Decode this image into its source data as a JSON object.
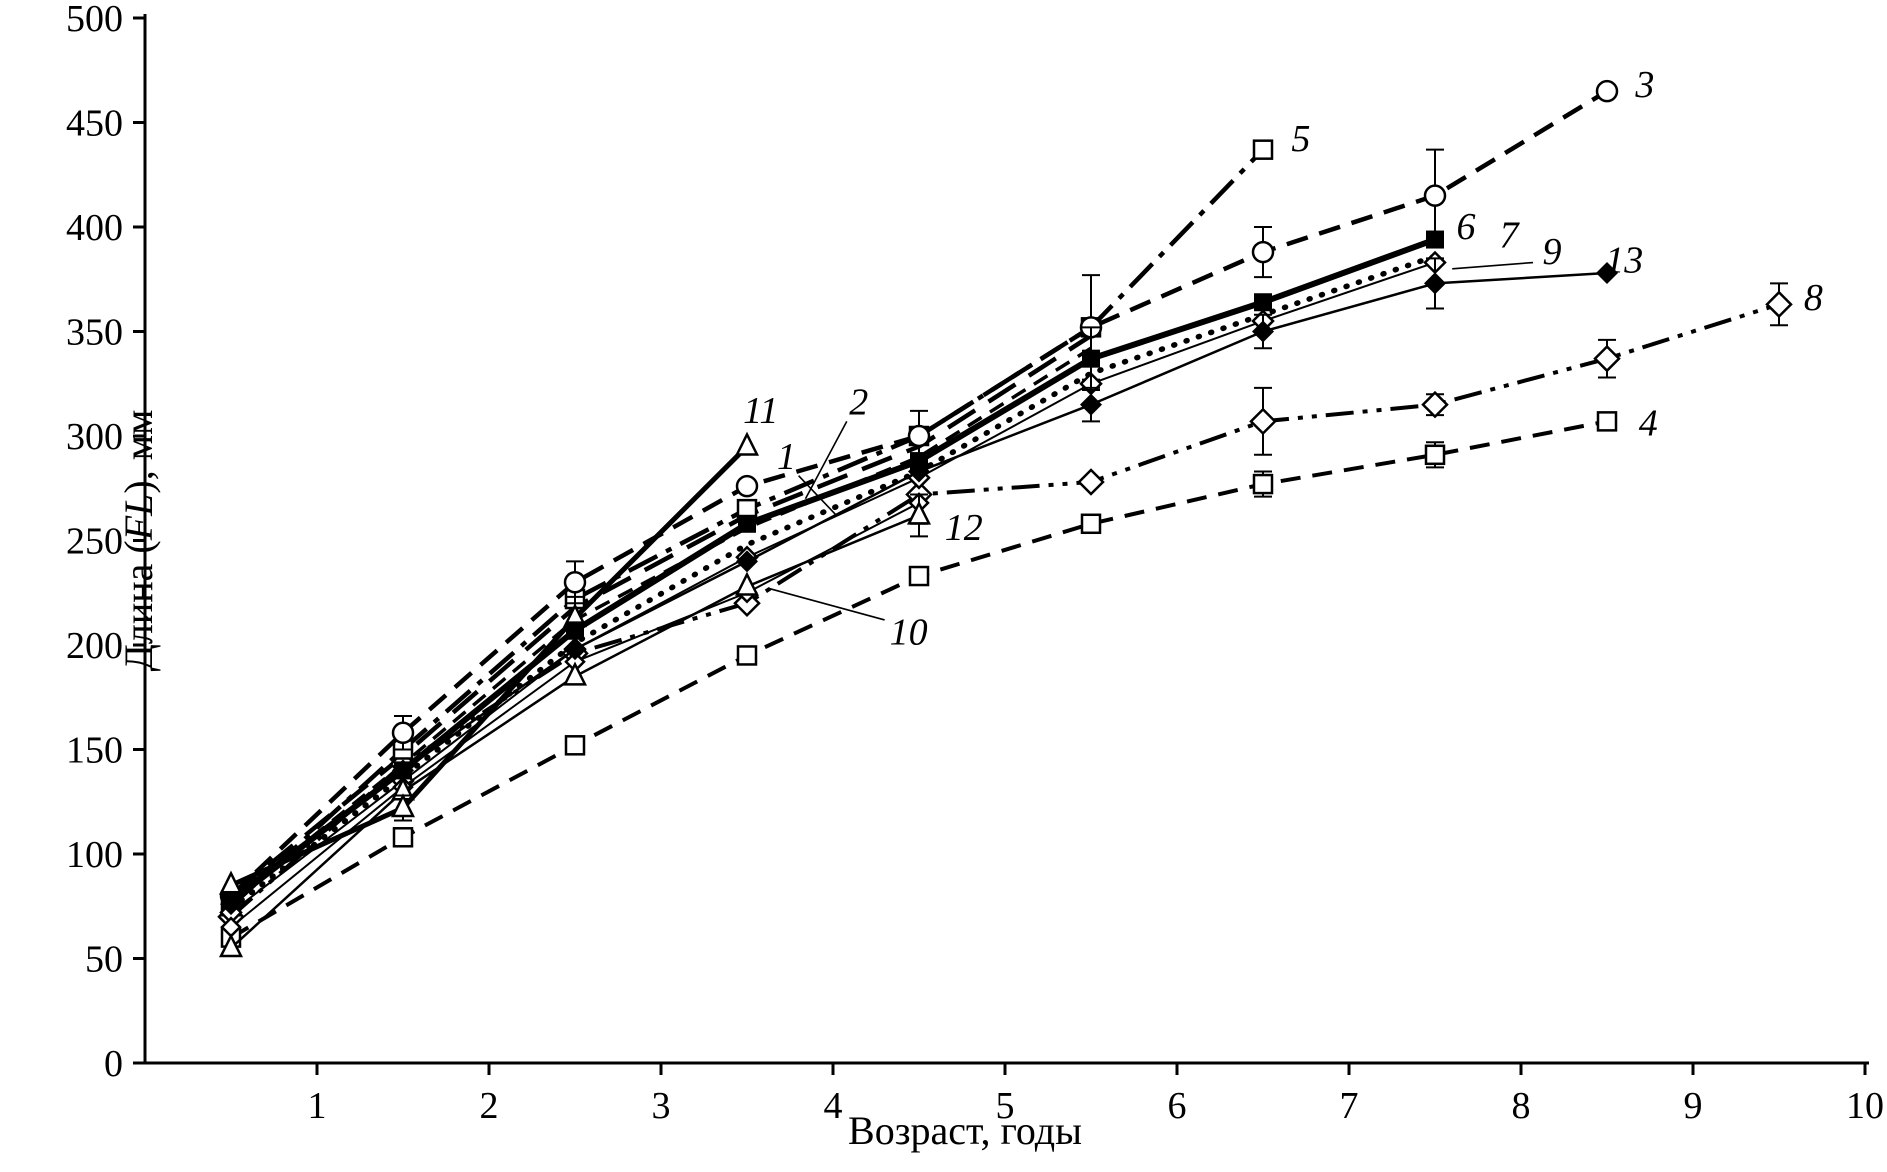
{
  "figure": {
    "background": "#ffffff",
    "ink_color": "#000000"
  },
  "chart_data": {
    "type": "line",
    "title": "",
    "xlabel": "Возраст, годы",
    "ylabel_parts": [
      {
        "text": "Длина (",
        "italic": false
      },
      {
        "text": "FL",
        "italic": true
      },
      {
        "text": "), мм",
        "italic": false
      }
    ],
    "xlim": [
      0,
      10
    ],
    "ylim": [
      0,
      500
    ],
    "xticks": [
      1,
      2,
      3,
      4,
      5,
      6,
      7,
      8,
      9,
      10
    ],
    "yticks": [
      0,
      50,
      100,
      150,
      200,
      250,
      300,
      350,
      400,
      450,
      500
    ],
    "grid": false,
    "legend_position": "none",
    "series": [
      {
        "id": "1",
        "x": [
          0.5,
          1.5,
          2.5,
          3.5,
          4.5,
          5.5
        ],
        "y": [
          80,
          147,
          218,
          262,
          295,
          348
        ],
        "dash": "32,16",
        "width": 4.5,
        "marker": "none",
        "msize": 9,
        "errors": []
      },
      {
        "id": "2",
        "x": [
          0.5,
          1.5,
          2.5,
          3.5,
          4.5,
          5.5
        ],
        "y": [
          77,
          143,
          212,
          256,
          290,
          342
        ],
        "dash": "16,10",
        "width": 3.5,
        "marker": "none",
        "msize": 9,
        "errors": []
      },
      {
        "id": "4",
        "x": [
          0.5,
          1.5,
          2.5,
          3.5,
          4.5,
          5.5,
          6.5,
          7.5,
          8.5
        ],
        "y": [
          60,
          108,
          152,
          195,
          233,
          258,
          277,
          291,
          307
        ],
        "dash": "20,12",
        "width": 4,
        "marker": "square-open",
        "msize": 9,
        "errors": [
          null,
          null,
          null,
          null,
          null,
          null,
          6,
          6,
          null
        ]
      },
      {
        "id": "8",
        "x": [
          0.5,
          1.5,
          2.5,
          3.5,
          4.5,
          5.5,
          6.5,
          7.5,
          8.5,
          9.5
        ],
        "y": [
          70,
          143,
          196,
          220,
          272,
          278,
          307,
          315,
          337,
          363
        ],
        "dash": "28,9,5,9,5,9",
        "width": 4,
        "marker": "diamond-open",
        "msize": 9,
        "errors": [
          null,
          null,
          null,
          null,
          14,
          null,
          16,
          5,
          9,
          10
        ]
      },
      {
        "id": "5",
        "x": [
          0.5,
          1.5,
          2.5,
          3.5,
          4.5,
          5.5,
          6.5
        ],
        "y": [
          75,
          150,
          222,
          265,
          300,
          352,
          437
        ],
        "dash": "32,10,6,10",
        "width": 4.5,
        "marker": "square-open",
        "msize": 9,
        "errors": []
      },
      {
        "id": "3",
        "x": [
          0.5,
          1.5,
          2.5,
          3.5,
          4.5,
          5.5,
          6.5,
          7.5,
          8.5
        ],
        "y": [
          80,
          158,
          230,
          276,
          300,
          352,
          388,
          415,
          465
        ],
        "dash": "22,12",
        "width": 4.5,
        "marker": "circle-open",
        "msize": 9,
        "errors": [
          null,
          8,
          10,
          null,
          12,
          25,
          12,
          22,
          null
        ]
      },
      {
        "id": "7",
        "x": [
          0.5,
          1.5,
          2.5,
          3.5,
          4.5,
          5.5,
          6.5,
          7.5
        ],
        "y": [
          74,
          137,
          201,
          248,
          283,
          330,
          358,
          386
        ],
        "dash": "1,12",
        "cap": "round",
        "width": 5.5,
        "marker": "none",
        "msize": 9,
        "errors": []
      },
      {
        "id": "9",
        "x": [
          0.5,
          1.5,
          2.5,
          3.5,
          4.5,
          5.5,
          6.5,
          7.5
        ],
        "y": [
          72,
          135,
          198,
          242,
          280,
          325,
          355,
          383
        ],
        "dash": "",
        "width": 2,
        "marker": "diamond-open",
        "msize": 7,
        "errors": []
      },
      {
        "id": "10",
        "x": [
          0.5,
          1.5,
          2.5,
          3.5,
          4.5
        ],
        "y": [
          65,
          132,
          192,
          225,
          268
        ],
        "dash": "",
        "width": 2,
        "marker": "diamond-open",
        "msize": 6,
        "errors": []
      },
      {
        "id": "12",
        "x": [
          0.5,
          1.5,
          2.5,
          3.5,
          4.5
        ],
        "y": [
          55,
          130,
          185,
          228,
          262
        ],
        "dash": "",
        "width": 2.5,
        "marker": "triangle-open",
        "msize": 10,
        "errors": [
          null,
          null,
          null,
          null,
          10
        ]
      },
      {
        "id": "11",
        "x": [
          0.5,
          1.5,
          2.5,
          3.5
        ],
        "y": [
          85,
          122,
          213,
          295
        ],
        "dash": "",
        "width": 5,
        "marker": "triangle-open",
        "msize": 10,
        "errors": [
          null,
          6,
          10,
          null
        ]
      },
      {
        "id": "13",
        "x": [
          0.5,
          1.5,
          2.5,
          3.5,
          4.5,
          5.5,
          6.5,
          7.5,
          8.5
        ],
        "y": [
          76,
          140,
          198,
          240,
          283,
          315,
          350,
          373,
          378
        ],
        "dash": "",
        "width": 2.5,
        "marker": "diamond-filled",
        "msize": 8,
        "errors": [
          null,
          null,
          null,
          null,
          null,
          8,
          8,
          12,
          null
        ]
      },
      {
        "id": "6",
        "x": [
          0.5,
          1.5,
          2.5,
          3.5,
          4.5,
          5.5,
          6.5,
          7.5
        ],
        "y": [
          78,
          140,
          207,
          258,
          288,
          337,
          364,
          394
        ],
        "dash": "",
        "width": 6,
        "marker": "square-filled",
        "msize": 9,
        "errors": [
          null,
          null,
          null,
          null,
          null,
          15,
          null,
          null
        ]
      }
    ],
    "annotations": [
      {
        "text": "1",
        "x": 3.73,
        "y": 290,
        "leader": [
          3.8,
          281,
          4.02,
          262
        ]
      },
      {
        "text": "2",
        "x": 4.15,
        "y": 316,
        "leader": [
          4.08,
          307,
          3.84,
          270
        ]
      },
      {
        "text": "3",
        "x": 8.72,
        "y": 468,
        "leader": null
      },
      {
        "text": "4",
        "x": 8.74,
        "y": 306,
        "leader": null
      },
      {
        "text": "5",
        "x": 6.72,
        "y": 442,
        "leader": null
      },
      {
        "text": "6",
        "x": 7.68,
        "y": 400,
        "leader": null
      },
      {
        "text": "7",
        "x": 7.93,
        "y": 396,
        "leader": null
      },
      {
        "text": "8",
        "x": 9.7,
        "y": 366,
        "leader": null
      },
      {
        "text": "9",
        "x": 8.18,
        "y": 388,
        "leader": [
          8.07,
          383,
          7.6,
          380
        ]
      },
      {
        "text": "10",
        "x": 4.44,
        "y": 206,
        "leader": [
          4.3,
          212,
          3.63,
          227
        ]
      },
      {
        "text": "11",
        "x": 3.58,
        "y": 312,
        "leader": null
      },
      {
        "text": "12",
        "x": 4.76,
        "y": 256,
        "leader": null
      },
      {
        "text": "13",
        "x": 8.6,
        "y": 384,
        "leader": null
      }
    ]
  }
}
